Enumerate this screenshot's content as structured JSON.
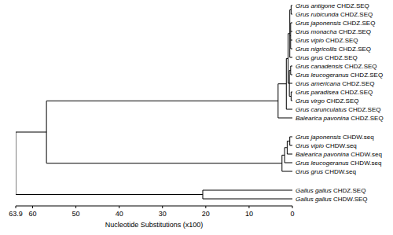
{
  "chart_data": {
    "type": "dendrogram",
    "xlabel": "Nucleotide Substitutions (x100)",
    "xlim": [
      63.9,
      0
    ],
    "xticks": [
      63.9,
      60,
      50,
      40,
      30,
      20,
      10,
      0
    ],
    "tree": {
      "height": 63.9,
      "children": [
        {
          "height": 56.8,
          "children": [
            {
              "height": 3.3,
              "children": [
                {
                  "height": 1.4,
                  "children": [
                    {
                      "height": 1.0,
                      "children": [
                        {
                          "height": 0.6,
                          "children": [
                            {
                              "height": 0.3,
                              "children": [
                                {
                                  "label": "Grus antigone CHDZ.SEQ",
                                  "height": 0
                                },
                                {
                                  "label": "Grus rubicunda CHDZ.SEQ",
                                  "height": 0
                                }
                              ]
                            },
                            {
                              "height": 0.4,
                              "children": [
                                {
                                  "label": "Grus japonensis CHDZ.SEQ",
                                  "height": 0
                                },
                                {
                                  "label": "Grus monacha CHDZ.SEQ",
                                  "height": 0
                                },
                                {
                                  "label": "Grus vipio CHDZ.SEQ",
                                  "height": 0
                                },
                                {
                                  "label": "Grus nigricollis CHDZ.SEQ",
                                  "height": 0
                                }
                              ]
                            },
                            {
                              "label": "Grus grus CHDZ.SEQ",
                              "height": 0
                            }
                          ]
                        },
                        {
                          "height": 0.7,
                          "children": [
                            {
                              "height": 0.4,
                              "children": [
                                {
                                  "label": "Grus canadensis CHDZ.SEQ",
                                  "height": 0
                                },
                                {
                                  "label": "Grus leucogeranus CHDZ.SEQ",
                                  "height": 0
                                }
                              ]
                            },
                            {
                              "label": "Grus americana CHDZ.SEQ",
                              "height": 0
                            },
                            {
                              "height": 0.3,
                              "children": [
                                {
                                  "label": "Grus paradisea CHDZ.SEQ",
                                  "height": 0
                                },
                                {
                                  "label": "Grus virgo CHDZ.SEQ",
                                  "height": 0
                                }
                              ]
                            }
                          ]
                        }
                      ]
                    },
                    {
                      "label": "Grus carunculatus CHDZ.SEQ",
                      "height": 0
                    }
                  ]
                },
                {
                  "label": "Balearica pavonina CHDZ.SEQ",
                  "height": 0
                }
              ]
            },
            {
              "height": 2.4,
              "children": [
                {
                  "height": 1.8,
                  "children": [
                    {
                      "height": 1.2,
                      "children": [
                        {
                          "height": 0.6,
                          "children": [
                            {
                              "label": "Grus japonensis CHDW.seq",
                              "height": 0
                            },
                            {
                              "label": "Grus vipio CHDW.seq",
                              "height": 0
                            }
                          ]
                        },
                        {
                          "label": "Balearica pavonina CHDW.seq",
                          "height": 0
                        }
                      ]
                    },
                    {
                      "label": "Grus leucogeranus CHDW.seq",
                      "height": 0
                    }
                  ]
                },
                {
                  "label": "Grus grus CHDW.seq",
                  "height": 0
                }
              ]
            }
          ]
        },
        {
          "height": 20.7,
          "children": [
            {
              "label": "Gallus gallus CHDZ.SEQ",
              "height": 0
            },
            {
              "label": "Gallus gallus CHDW.SEQ",
              "height": 0
            }
          ]
        }
      ]
    }
  }
}
